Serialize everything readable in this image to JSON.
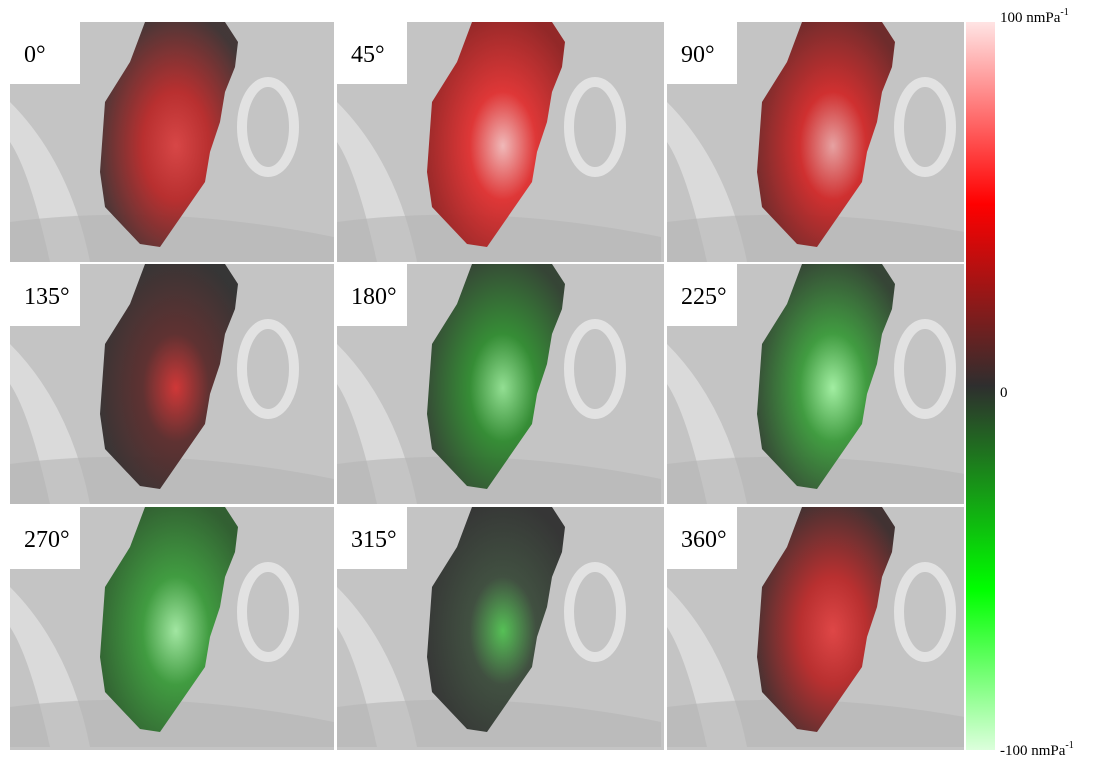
{
  "panels": [
    {
      "label": "0°"
    },
    {
      "label": "45°"
    },
    {
      "label": "90°"
    },
    {
      "label": "135°"
    },
    {
      "label": "180°"
    },
    {
      "label": "225°"
    },
    {
      "label": "270°"
    },
    {
      "label": "315°"
    },
    {
      "label": "360°"
    }
  ],
  "colorbar": {
    "max": {
      "text": "100 nmPa",
      "sup": "-1"
    },
    "mid": {
      "text": "0"
    },
    "min": {
      "text": "-100 nmPa",
      "sup": "-1"
    }
  }
}
